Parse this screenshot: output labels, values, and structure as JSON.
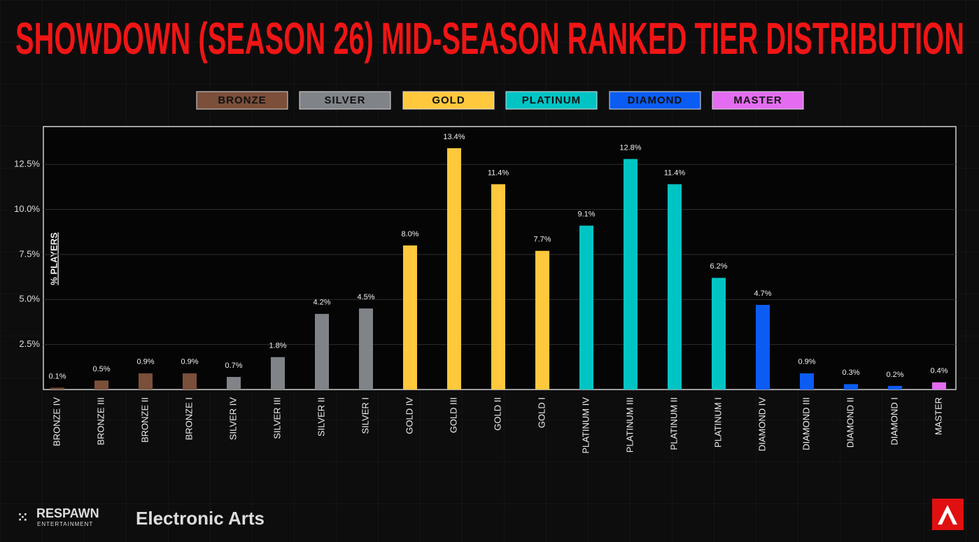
{
  "chart_data": {
    "type": "bar",
    "title": "SHOWDOWN (SEASON 26) MID-SEASON RANKED TIER DISTRIBUTION",
    "y_label": "% PLAYERS",
    "categories": [
      "BRONZE IV",
      "BRONZE III",
      "BRONZE II",
      "BRONZE I",
      "SILVER IV",
      "SILVER III",
      "SILVER II",
      "SILVER I",
      "GOLD IV",
      "GOLD III",
      "GOLD II",
      "GOLD I",
      "PLATINUM IV",
      "PLATINUM III",
      "PLATINUM II",
      "PLATINUM I",
      "DIAMOND IV",
      "DIAMOND III",
      "DIAMOND II",
      "DIAMOND I",
      "MASTER"
    ],
    "series": [
      {
        "name": "BRONZE",
        "color": "#7b4f3a",
        "values": [
          0.1,
          0.5,
          0.9,
          0.9,
          null,
          null,
          null,
          null,
          null,
          null,
          null,
          null,
          null,
          null,
          null,
          null,
          null,
          null,
          null,
          null,
          null
        ],
        "value_labels": [
          "0.1%",
          "0.5%",
          "0.9%",
          "0.9%",
          null,
          null,
          null,
          null,
          null,
          null,
          null,
          null,
          null,
          null,
          null,
          null,
          null,
          null,
          null,
          null,
          null
        ]
      },
      {
        "name": "SILVER",
        "color": "#808488",
        "values": [
          null,
          null,
          null,
          null,
          0.7,
          1.8,
          4.2,
          4.5,
          null,
          null,
          null,
          null,
          null,
          null,
          null,
          null,
          null,
          null,
          null,
          null,
          null
        ],
        "value_labels": [
          null,
          null,
          null,
          null,
          "0.7%",
          "1.8%",
          "4.2%",
          "4.5%",
          null,
          null,
          null,
          null,
          null,
          null,
          null,
          null,
          null,
          null,
          null,
          null,
          null
        ]
      },
      {
        "name": "GOLD",
        "color": "#ffc83d",
        "values": [
          null,
          null,
          null,
          null,
          null,
          null,
          null,
          null,
          8.0,
          13.4,
          11.4,
          7.7,
          null,
          null,
          null,
          null,
          null,
          null,
          null,
          null,
          null
        ],
        "value_labels": [
          null,
          null,
          null,
          null,
          null,
          null,
          null,
          null,
          "8.0%",
          "13.4%",
          "11.4%",
          "7.7%",
          null,
          null,
          null,
          null,
          null,
          null,
          null,
          null,
          null
        ]
      },
      {
        "name": "PLATINUM",
        "color": "#00c4c4",
        "values": [
          null,
          null,
          null,
          null,
          null,
          null,
          null,
          null,
          null,
          null,
          null,
          null,
          9.1,
          12.8,
          11.4,
          6.2,
          null,
          null,
          null,
          null,
          null
        ],
        "value_labels": [
          null,
          null,
          null,
          null,
          null,
          null,
          null,
          null,
          null,
          null,
          null,
          null,
          "9.1%",
          "12.8%",
          "11.4%",
          "6.2%",
          null,
          null,
          null,
          null,
          null
        ]
      },
      {
        "name": "DIAMOND",
        "color": "#0b5cf3",
        "values": [
          null,
          null,
          null,
          null,
          null,
          null,
          null,
          null,
          null,
          null,
          null,
          null,
          null,
          null,
          null,
          null,
          4.7,
          0.9,
          0.3,
          0.2,
          null
        ],
        "value_labels": [
          null,
          null,
          null,
          null,
          null,
          null,
          null,
          null,
          null,
          null,
          null,
          null,
          null,
          null,
          null,
          null,
          "4.7%",
          "0.9%",
          "0.3%",
          "0.2%",
          null
        ]
      },
      {
        "name": "MASTER",
        "color": "#e46cf0",
        "values": [
          null,
          null,
          null,
          null,
          null,
          null,
          null,
          null,
          null,
          null,
          null,
          null,
          null,
          null,
          null,
          null,
          null,
          null,
          null,
          null,
          0.4
        ],
        "value_labels": [
          null,
          null,
          null,
          null,
          null,
          null,
          null,
          null,
          null,
          null,
          null,
          null,
          null,
          null,
          null,
          null,
          null,
          null,
          null,
          null,
          "0.4%"
        ]
      }
    ],
    "ylim": [
      0,
      14.6
    ],
    "yticks": [
      {
        "value": 2.5,
        "label": "2.5%"
      },
      {
        "value": 5,
        "label": "5.0%"
      },
      {
        "value": 7.5,
        "label": "7.5%"
      },
      {
        "value": 10,
        "label": "10.0%"
      },
      {
        "value": 12.5,
        "label": "12.5%"
      }
    ],
    "grid": true
  },
  "footer": {
    "logos": [
      "RESPAWN",
      "ENTERTAINMENT",
      "Electronic Arts"
    ]
  }
}
